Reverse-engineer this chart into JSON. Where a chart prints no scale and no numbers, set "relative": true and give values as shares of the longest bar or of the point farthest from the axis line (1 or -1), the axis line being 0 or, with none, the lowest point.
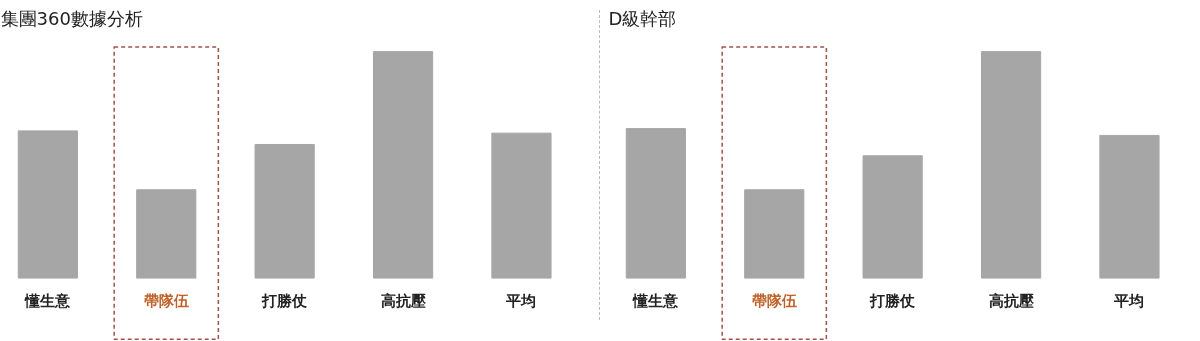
{
  "chart_data": [
    {
      "type": "bar",
      "title": "集團360數據分析",
      "relative": true,
      "categories": [
        "懂生意",
        "帶隊伍",
        "打勝仗",
        "高抗壓",
        "平均"
      ],
      "values": [
        0.65,
        0.39,
        0.59,
        1,
        0.64
      ],
      "color": "#a6a6a6"
    },
    {
      "type": "bar",
      "title": "D級幹部",
      "relative": true,
      "categories": [
        "懂生意",
        "帶隊伍",
        "打勝仗",
        "高抗壓",
        "平均"
      ],
      "values": [
        0.66,
        0.39,
        0.54,
        1,
        0.63
      ],
      "color": "#a6a6a6"
    }
  ]
}
